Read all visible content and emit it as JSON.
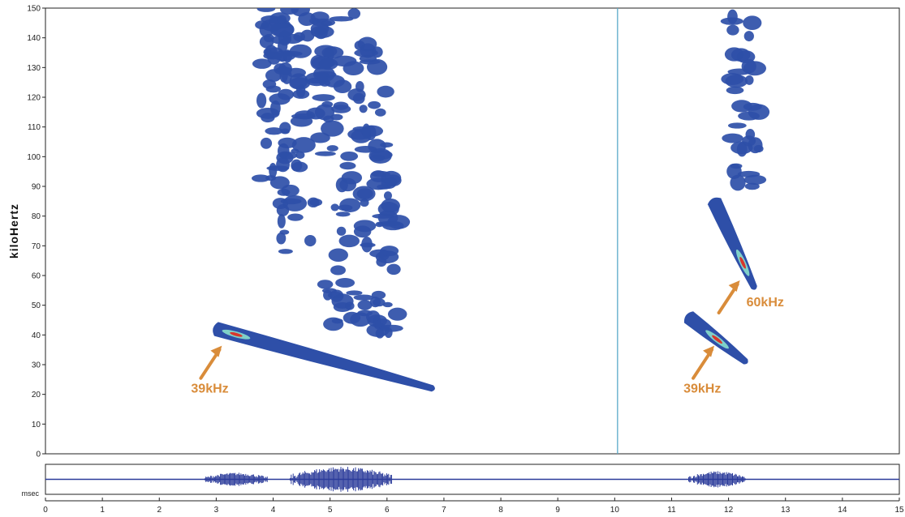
{
  "chart_data": {
    "type": "heatmap",
    "title": "",
    "xlabel": "msec",
    "ylabel": "kiloHertz",
    "xlim": [
      0,
      15
    ],
    "ylim": [
      0,
      150
    ],
    "x_ticks": [
      0,
      1,
      2,
      3,
      4,
      5,
      6,
      7,
      8,
      9,
      10,
      11,
      12,
      13,
      14,
      15
    ],
    "y_ticks": [
      0,
      10,
      20,
      30,
      40,
      50,
      60,
      70,
      80,
      90,
      100,
      110,
      120,
      130,
      140,
      150
    ],
    "grid": false,
    "divider_x": 10.05,
    "colors": {
      "low": "#2e4fa8",
      "mid": "#7fd0c8",
      "high": "#d9362b",
      "annotation": "#d98c3a",
      "divider": "#5aa9c9"
    },
    "calls": [
      {
        "name": "call-1-fm-sweep",
        "x_start": 3.0,
        "x_end": 6.8,
        "f_start": 42,
        "f_end": 22,
        "peak_x": 3.35,
        "peak_freq": 39
      },
      {
        "name": "call-2-fundamental",
        "x_start": 11.3,
        "x_end": 12.3,
        "f_start": 46,
        "f_end": 31,
        "peak_x": 11.8,
        "peak_freq": 39
      },
      {
        "name": "call-2-harmonic",
        "x_start": 11.75,
        "x_end": 12.45,
        "f_start": 85,
        "f_end": 56,
        "peak_x": 12.25,
        "peak_freq": 60
      }
    ],
    "annotations": [
      {
        "text": "39kHz",
        "tip_x": 3.1,
        "tip_freq": 38
      },
      {
        "text": "39kHz",
        "tip_x": 11.75,
        "tip_freq": 38
      },
      {
        "text": "60kHz",
        "tip_x": 12.2,
        "tip_freq": 60
      }
    ],
    "waveform": {
      "bursts": [
        {
          "x_start": 2.8,
          "x_end": 3.9,
          "amplitude": 0.45
        },
        {
          "x_start": 4.3,
          "x_end": 6.1,
          "amplitude": 0.85
        },
        {
          "x_start": 11.3,
          "x_end": 12.3,
          "amplitude": 0.55
        }
      ]
    }
  }
}
